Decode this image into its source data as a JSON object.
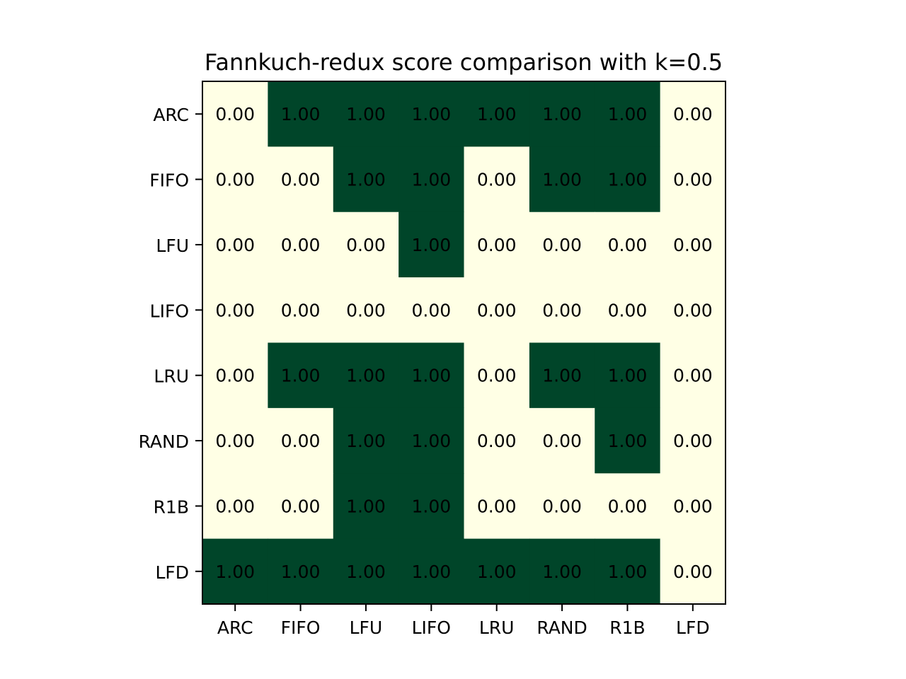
{
  "chart_data": {
    "type": "heatmap",
    "title": "Fannkuch-redux score comparison with k=0.5",
    "xlabel": "",
    "ylabel": "",
    "x_categories": [
      "ARC",
      "FIFO",
      "LFU",
      "LIFO",
      "LRU",
      "RAND",
      "R1B",
      "LFD"
    ],
    "y_categories": [
      "ARC",
      "FIFO",
      "LFU",
      "LIFO",
      "LRU",
      "RAND",
      "R1B",
      "LFD"
    ],
    "values": [
      [
        0.0,
        1.0,
        1.0,
        1.0,
        1.0,
        1.0,
        1.0,
        0.0
      ],
      [
        0.0,
        0.0,
        1.0,
        1.0,
        0.0,
        1.0,
        1.0,
        0.0
      ],
      [
        0.0,
        0.0,
        0.0,
        1.0,
        0.0,
        0.0,
        0.0,
        0.0
      ],
      [
        0.0,
        0.0,
        0.0,
        0.0,
        0.0,
        0.0,
        0.0,
        0.0
      ],
      [
        0.0,
        1.0,
        1.0,
        1.0,
        0.0,
        1.0,
        1.0,
        0.0
      ],
      [
        0.0,
        0.0,
        1.0,
        1.0,
        0.0,
        0.0,
        1.0,
        0.0
      ],
      [
        0.0,
        0.0,
        1.0,
        1.0,
        0.0,
        0.0,
        0.0,
        0.0
      ],
      [
        1.0,
        1.0,
        1.0,
        1.0,
        1.0,
        1.0,
        1.0,
        0.0
      ]
    ],
    "value_format": "0.00",
    "colormap": "YlGn",
    "colors": {
      "low": "#ffffe5",
      "high": "#004529",
      "text": "#000000",
      "frame": "#000000"
    },
    "grid": false,
    "legend": "none"
  }
}
